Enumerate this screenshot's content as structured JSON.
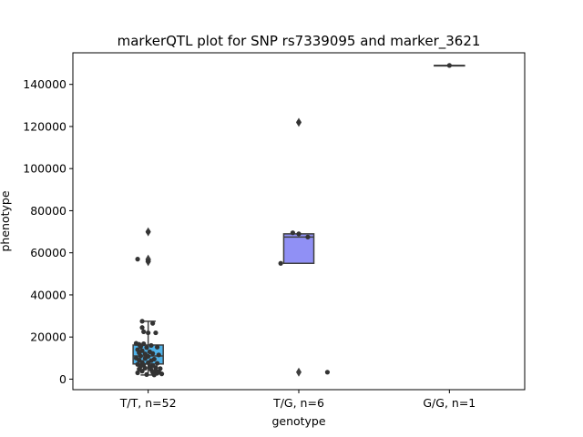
{
  "chart_data": {
    "type": "box",
    "title": "markerQTL plot for SNP rs7339095 and marker_3621",
    "xlabel": "genotype",
    "ylabel": "phenotype",
    "categories": [
      "T/T, n=52",
      "T/G, n=6",
      "G/G, n=1"
    ],
    "ylim": [
      -5000,
      155000
    ],
    "yticks": [
      0,
      20000,
      40000,
      60000,
      80000,
      100000,
      120000,
      140000
    ],
    "ytick_labels": [
      "0",
      "20000",
      "40000",
      "60000",
      "80000",
      "100000",
      "120000",
      "140000"
    ],
    "grid": false,
    "legend": "none",
    "boxes": [
      {
        "category": "T/T, n=52",
        "color": "#4fb3ea",
        "q1": 7200,
        "median": 11000,
        "q3": 16200,
        "whisker_low": 2000,
        "whisker_high": 27500,
        "outliers": [
          57000,
          70000,
          55800,
          56500
        ]
      },
      {
        "category": "T/G, n=6",
        "color": "#9090f5",
        "q1": 55000,
        "median": 67500,
        "q3": 69000,
        "whisker_low": 55000,
        "whisker_high": 69000,
        "outliers": [
          3300,
          122000
        ]
      },
      {
        "category": "G/G, n=1",
        "color": "#d98c5a",
        "q1": 149000,
        "median": 149000,
        "q3": 149000,
        "whisker_low": 149000,
        "whisker_high": 149000,
        "outliers": []
      }
    ],
    "points": [
      {
        "category": 0,
        "jitter": -0.07,
        "value": 57000
      },
      {
        "category": 0,
        "jitter": -0.04,
        "value": 27500
      },
      {
        "category": 0,
        "jitter": 0.03,
        "value": 26500
      },
      {
        "category": 0,
        "jitter": -0.04,
        "value": 24500
      },
      {
        "category": 0,
        "jitter": -0.03,
        "value": 22500
      },
      {
        "category": 0,
        "jitter": 0.0,
        "value": 22000
      },
      {
        "category": 0,
        "jitter": 0.05,
        "value": 22000
      },
      {
        "category": 0,
        "jitter": -0.08,
        "value": 17000
      },
      {
        "category": 0,
        "jitter": -0.06,
        "value": 16500
      },
      {
        "category": 0,
        "jitter": -0.03,
        "value": 16800
      },
      {
        "category": 0,
        "jitter": 0.02,
        "value": 16000
      },
      {
        "category": 0,
        "jitter": -0.05,
        "value": 15500
      },
      {
        "category": 0,
        "jitter": -0.01,
        "value": 15000
      },
      {
        "category": 0,
        "jitter": 0.06,
        "value": 15200
      },
      {
        "category": 0,
        "jitter": -0.07,
        "value": 14000
      },
      {
        "category": 0,
        "jitter": -0.04,
        "value": 13500
      },
      {
        "category": 0,
        "jitter": 0.01,
        "value": 13000
      },
      {
        "category": 0,
        "jitter": -0.06,
        "value": 12500
      },
      {
        "category": 0,
        "jitter": -0.02,
        "value": 12000
      },
      {
        "category": 0,
        "jitter": 0.03,
        "value": 12200
      },
      {
        "category": 0,
        "jitter": 0.07,
        "value": 11500
      },
      {
        "category": 0,
        "jitter": -0.05,
        "value": 11000
      },
      {
        "category": 0,
        "jitter": 0.0,
        "value": 10800
      },
      {
        "category": 0,
        "jitter": -0.08,
        "value": 10000
      },
      {
        "category": 0,
        "jitter": -0.02,
        "value": 9800
      },
      {
        "category": 0,
        "jitter": 0.04,
        "value": 9500
      },
      {
        "category": 0,
        "jitter": -0.06,
        "value": 9000
      },
      {
        "category": 0,
        "jitter": 0.02,
        "value": 8800
      },
      {
        "category": 0,
        "jitter": -0.04,
        "value": 8000
      },
      {
        "category": 0,
        "jitter": 0.0,
        "value": 7800
      },
      {
        "category": 0,
        "jitter": 0.06,
        "value": 7500
      },
      {
        "category": 0,
        "jitter": -0.07,
        "value": 7000
      },
      {
        "category": 0,
        "jitter": -0.03,
        "value": 6800
      },
      {
        "category": 0,
        "jitter": 0.03,
        "value": 6500
      },
      {
        "category": 0,
        "jitter": -0.05,
        "value": 6000
      },
      {
        "category": 0,
        "jitter": 0.01,
        "value": 5800
      },
      {
        "category": 0,
        "jitter": 0.05,
        "value": 5500
      },
      {
        "category": 0,
        "jitter": -0.02,
        "value": 5200
      },
      {
        "category": 0,
        "jitter": 0.08,
        "value": 5000
      },
      {
        "category": 0,
        "jitter": -0.06,
        "value": 4800
      },
      {
        "category": 0,
        "jitter": 0.02,
        "value": 4500
      },
      {
        "category": 0,
        "jitter": 0.05,
        "value": 4000
      },
      {
        "category": 0,
        "jitter": -0.04,
        "value": 3800
      },
      {
        "category": 0,
        "jitter": 0.07,
        "value": 3500
      },
      {
        "category": 0,
        "jitter": 0.03,
        "value": 3200
      },
      {
        "category": 0,
        "jitter": -0.07,
        "value": 3000
      },
      {
        "category": 0,
        "jitter": 0.06,
        "value": 2800
      },
      {
        "category": 0,
        "jitter": 0.09,
        "value": 2500
      },
      {
        "category": 0,
        "jitter": -0.01,
        "value": 2200
      },
      {
        "category": 0,
        "jitter": 0.04,
        "value": 2000
      },
      {
        "category": 0,
        "jitter": 0.0,
        "value": 70000
      },
      {
        "category": 0,
        "jitter": 0.0,
        "value": 56000
      },
      {
        "category": 1,
        "jitter": 0.19,
        "value": 3300
      },
      {
        "category": 1,
        "jitter": -0.12,
        "value": 55000
      },
      {
        "category": 1,
        "jitter": -0.04,
        "value": 69500
      },
      {
        "category": 1,
        "jitter": 0.06,
        "value": 67500
      },
      {
        "category": 1,
        "jitter": 0.0,
        "value": 69000
      },
      {
        "category": 1,
        "jitter": 0.0,
        "value": 122000
      },
      {
        "category": 2,
        "jitter": 0.0,
        "value": 149000
      }
    ]
  }
}
